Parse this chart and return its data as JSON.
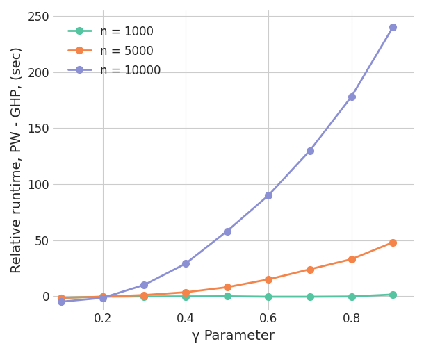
{
  "x": [
    0.1,
    0.2,
    0.3,
    0.4,
    0.5,
    0.6,
    0.7,
    0.8,
    0.9
  ],
  "n1000": [
    -1.5,
    -0.5,
    -0.3,
    -0.2,
    -0.1,
    -0.5,
    -0.5,
    -0.3,
    1.5
  ],
  "n5000": [
    -1.5,
    -0.5,
    1.0,
    3.5,
    8.0,
    15.0,
    24.0,
    33.0,
    48.0
  ],
  "n10000": [
    -5.0,
    -1.5,
    10.0,
    29.0,
    58.0,
    90.0,
    130.0,
    178.0,
    240.0
  ],
  "color_n1000": "#55c4a0",
  "color_n5000": "#f5844a",
  "color_n10000": "#8b8fd4",
  "xlabel": "γ Parameter",
  "ylabel": "Relative runtime, PW - GHP, (sec)",
  "legend_labels": [
    "n = 1000",
    "n = 5000",
    "n = 10000"
  ],
  "ylim": [
    -12,
    255
  ],
  "xlim": [
    0.08,
    0.95
  ],
  "yticks": [
    0,
    50,
    100,
    150,
    200,
    250
  ],
  "xticks": [
    0.2,
    0.4,
    0.6,
    0.8
  ],
  "figsize": [
    6.1,
    5.08
  ],
  "dpi": 100,
  "marker": "o",
  "markersize": 7,
  "linewidth": 2.0,
  "grid_color": "#cccccc",
  "bg_color": "#ffffff",
  "fig_bg_color": "#ffffff",
  "legend_fontsize": 12,
  "axis_label_fontsize": 14,
  "tick_fontsize": 12
}
